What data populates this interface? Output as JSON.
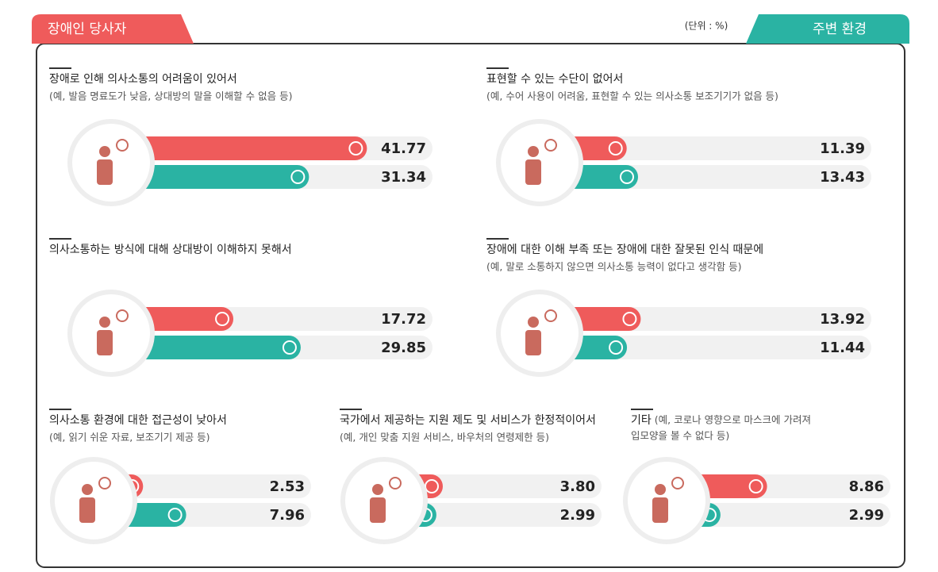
{
  "legend": {
    "self": "장애인 당사자",
    "env": "주변 환경"
  },
  "unit": "(단위 : %)",
  "chart_data": [
    {
      "type": "bar",
      "title": "장애로 인해 의사소통의 어려움이 있어서",
      "subtitle": "(예, 발음 명료도가 낮음, 상대방의 말을 이해할 수 없음 등)",
      "values": [
        41.77,
        31.34
      ],
      "value_labels": [
        "41.77",
        "31.34"
      ],
      "colors": [
        "#ef5b5b",
        "#2ab3a3"
      ]
    },
    {
      "type": "bar",
      "title": "표현할 수 있는 수단이 없어서",
      "subtitle": "(예, 수어 사용이 어려움, 표현할 수 있는 의사소통 보조기기가 없음 등)",
      "values": [
        11.39,
        13.43
      ],
      "value_labels": [
        "11.39",
        "13.43"
      ],
      "colors": [
        "#ef5b5b",
        "#2ab3a3"
      ]
    },
    {
      "type": "bar",
      "title": "의사소통하는 방식에 대해 상대방이 이해하지 못해서",
      "values": [
        17.72,
        29.85
      ],
      "value_labels": [
        "17.72",
        "29.85"
      ],
      "colors": [
        "#ef5b5b",
        "#2ab3a3"
      ]
    },
    {
      "type": "bar",
      "title": "장애에 대한 이해 부족 또는 장애에 대한 잘못된 인식 때문에",
      "subtitle": "(예, 말로 소통하지 않으면 의사소통 능력이 없다고 생각함 등)",
      "values": [
        13.92,
        11.44
      ],
      "value_labels": [
        "13.92",
        "11.44"
      ],
      "colors": [
        "#ef5b5b",
        "#2ab3a3"
      ]
    },
    {
      "type": "bar",
      "title": "의사소통 환경에 대한 접근성이 낮아서",
      "subtitle": "(예, 읽기 쉬운 자료, 보조기기 제공 등)",
      "values": [
        2.53,
        7.96
      ],
      "value_labels": [
        "2.53",
        "7.96"
      ],
      "colors": [
        "#ef5b5b",
        "#2ab3a3"
      ]
    },
    {
      "type": "bar",
      "title": "국가에서 제공하는 지원 제도 및 서비스가 한정적이어서",
      "subtitle": "(예, 개인 맞춤 지원 서비스, 바우처의 연령제한 등)",
      "values": [
        3.8,
        2.99
      ],
      "value_labels": [
        "3.80",
        "2.99"
      ],
      "colors": [
        "#ef5b5b",
        "#2ab3a3"
      ]
    },
    {
      "type": "bar",
      "title": "기타",
      "subtitle": "(예, 코로나 영향으로 마스크에 가려져",
      "subtitle2": "입모양을 볼 수 없다 등)",
      "values": [
        8.86,
        2.99
      ],
      "value_labels": [
        "8.86",
        "2.99"
      ],
      "colors": [
        "#ef5b5b",
        "#2ab3a3"
      ]
    }
  ]
}
